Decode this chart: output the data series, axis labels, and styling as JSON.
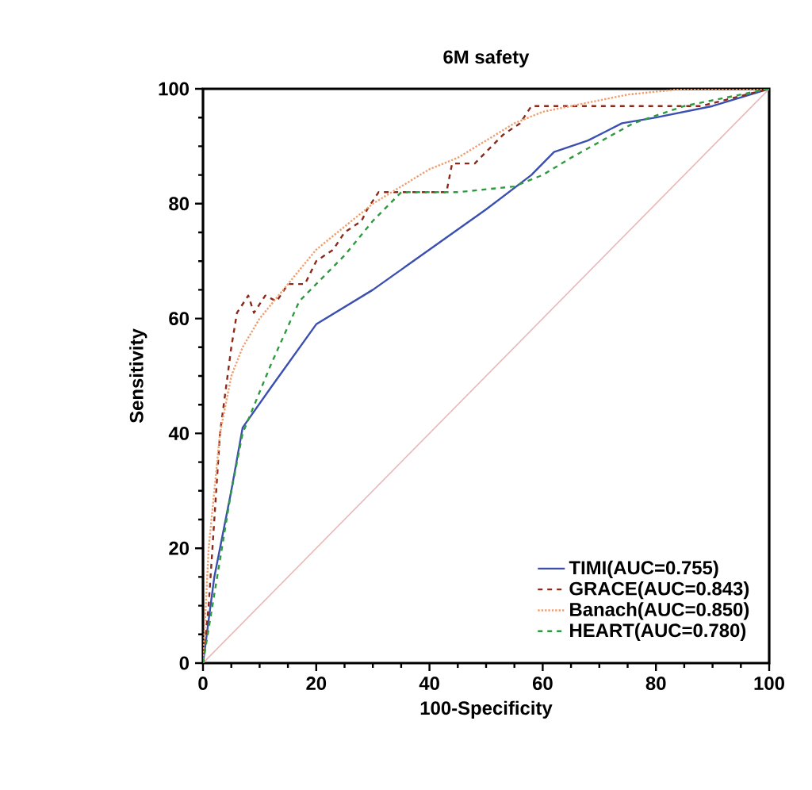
{
  "chart_data": {
    "type": "line",
    "title": "6M safety",
    "xlabel": "100-Specificity",
    "ylabel": "Sensitivity",
    "xlim": [
      0,
      100
    ],
    "ylim": [
      0,
      100
    ],
    "xticks": [
      0,
      20,
      40,
      60,
      80,
      100
    ],
    "yticks": [
      0,
      20,
      40,
      60,
      80,
      100
    ],
    "legend": "bottom right",
    "marker": "none",
    "grid": false,
    "series": [
      {
        "name": "TIMI(AUC=0.755)",
        "color": "#3a4fb0",
        "line_style": "solid",
        "x": [
          0,
          2,
          5,
          7,
          12,
          20,
          30,
          40,
          50,
          58,
          62,
          68,
          74,
          80,
          90,
          100
        ],
        "values": [
          0,
          15,
          30,
          41,
          48,
          59,
          65,
          72,
          79,
          85,
          89,
          91,
          94,
          95,
          97,
          100
        ]
      },
      {
        "name": "GRACE(AUC=0.843)",
        "color": "#8b2a1a",
        "line_style": "dashed",
        "x": [
          0,
          1,
          2,
          3,
          5,
          6,
          8,
          9,
          11,
          13,
          15,
          18,
          20,
          23,
          25,
          28,
          29,
          31,
          43,
          44,
          48,
          50,
          53,
          56,
          58,
          88,
          100
        ],
        "values": [
          0,
          10,
          25,
          40,
          55,
          61,
          64,
          61,
          64,
          63,
          66,
          66,
          70,
          72,
          75,
          77,
          79,
          82,
          82,
          87,
          87,
          89,
          92,
          94,
          97,
          97,
          100
        ]
      },
      {
        "name": "Banach(AUC=0.850)",
        "color": "#f0a070",
        "line_style": "dotted",
        "x": [
          0,
          1,
          3,
          5,
          7,
          10,
          15,
          20,
          25,
          30,
          35,
          40,
          45,
          50,
          55,
          60,
          65,
          75,
          85,
          100
        ],
        "values": [
          0,
          20,
          40,
          50,
          55,
          60,
          66,
          72,
          76,
          80,
          83,
          86,
          88,
          91,
          94,
          96,
          97,
          99,
          100,
          100
        ]
      },
      {
        "name": "HEART(AUC=0.780)",
        "color": "#2e9a3e",
        "line_style": "dashed",
        "x": [
          0,
          2,
          5,
          7,
          12,
          17,
          20,
          25,
          30,
          35,
          45,
          55,
          60,
          65,
          76,
          85,
          100
        ],
        "values": [
          0,
          12,
          30,
          40,
          52,
          63,
          66,
          71,
          77,
          82,
          82,
          83,
          85,
          88,
          94,
          97,
          100
        ]
      },
      {
        "color": "#e8b8b8",
        "line_style": "solid",
        "x": [
          0,
          100
        ],
        "values": [
          0,
          100
        ]
      }
    ]
  }
}
